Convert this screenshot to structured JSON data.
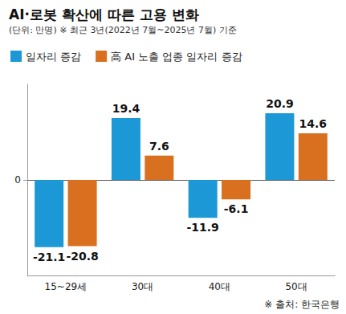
{
  "chart_data": {
    "type": "bar",
    "title": "AI·로봇 확산에 따른 고용 변화",
    "subtitle": "(단위: 만명) ※ 최근 3년(2022년 7월~2025년 7월) 기준",
    "source": "※ 출처: 한국은행",
    "categories": [
      "15~29세",
      "30대",
      "40대",
      "50대"
    ],
    "series": [
      {
        "name": "일자리 증감",
        "color": "#1b98d5",
        "values": [
          -21.1,
          19.4,
          -11.9,
          20.9
        ]
      },
      {
        "name": "高 AI 노출 업종 일자리 증감",
        "color": "#d8701f",
        "values": [
          -20.8,
          7.6,
          -6.1,
          14.6
        ]
      }
    ],
    "ylim": [
      -30,
      30
    ],
    "yticks": [
      0
    ],
    "grid": true,
    "legend": "top-left",
    "data_labels": true
  }
}
